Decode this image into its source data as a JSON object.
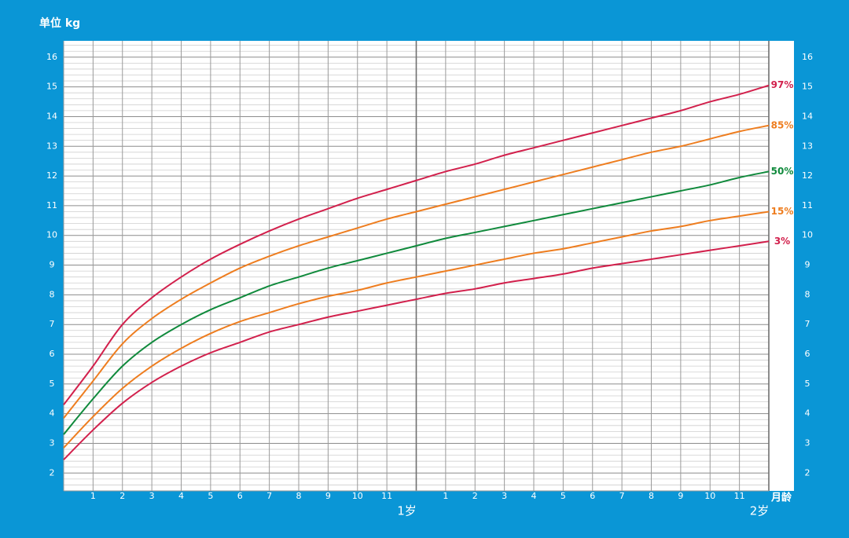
{
  "chart_data": {
    "type": "line",
    "y_label": "单位 kg",
    "x_label": "月龄",
    "x": [
      0,
      1,
      2,
      3,
      4,
      5,
      6,
      7,
      8,
      9,
      10,
      11,
      12,
      13,
      14,
      15,
      16,
      17,
      18,
      19,
      20,
      21,
      22,
      23,
      24
    ],
    "xlim": [
      0,
      24
    ],
    "xticks": [
      1,
      2,
      3,
      4,
      5,
      6,
      7,
      8,
      9,
      10,
      11,
      {
        "value": 13,
        "label": "1"
      },
      {
        "value": 14,
        "label": "2"
      },
      {
        "value": 15,
        "label": "3"
      },
      {
        "value": 16,
        "label": "4"
      },
      {
        "value": 17,
        "label": "5"
      },
      {
        "value": 18,
        "label": "6"
      },
      {
        "value": 19,
        "label": "7"
      },
      {
        "value": 20,
        "label": "8"
      },
      {
        "value": 21,
        "label": "9"
      },
      {
        "value": 22,
        "label": "10"
      },
      {
        "value": 23,
        "label": "11"
      }
    ],
    "year_ticks": [
      {
        "value": 12,
        "label": "1岁"
      },
      {
        "value": 24,
        "label": "2岁"
      }
    ],
    "ylim": [
      1.4,
      16.55
    ],
    "yticks": [
      2,
      3,
      4,
      5,
      6,
      7,
      8,
      9,
      10,
      11,
      12,
      13,
      14,
      15,
      16
    ],
    "grid": true,
    "series": [
      {
        "name": "97%",
        "color": "#d2204c",
        "values": [
          4.3,
          5.6,
          7.0,
          7.9,
          8.6,
          9.2,
          9.7,
          10.15,
          10.55,
          10.9,
          11.25,
          11.55,
          11.85,
          12.15,
          12.4,
          12.7,
          12.95,
          13.2,
          13.45,
          13.7,
          13.95,
          14.2,
          14.5,
          14.75,
          15.05
        ]
      },
      {
        "name": "85%",
        "color": "#ee7d1f",
        "values": [
          3.85,
          5.1,
          6.35,
          7.2,
          7.85,
          8.4,
          8.9,
          9.3,
          9.65,
          9.95,
          10.25,
          10.55,
          10.8,
          11.05,
          11.3,
          11.55,
          11.8,
          12.05,
          12.3,
          12.55,
          12.8,
          13.0,
          13.25,
          13.5,
          13.7
        ]
      },
      {
        "name": "50%",
        "color": "#108a3c",
        "values": [
          3.3,
          4.5,
          5.6,
          6.4,
          7.0,
          7.5,
          7.9,
          8.3,
          8.6,
          8.9,
          9.15,
          9.4,
          9.65,
          9.9,
          10.1,
          10.3,
          10.5,
          10.7,
          10.9,
          11.1,
          11.3,
          11.5,
          11.7,
          11.95,
          12.15
        ]
      },
      {
        "name": "15%",
        "color": "#ee7d1f",
        "values": [
          2.85,
          3.9,
          4.85,
          5.6,
          6.2,
          6.7,
          7.1,
          7.4,
          7.7,
          7.95,
          8.15,
          8.4,
          8.6,
          8.8,
          9.0,
          9.2,
          9.4,
          9.55,
          9.75,
          9.95,
          10.15,
          10.3,
          10.5,
          10.65,
          10.8
        ]
      },
      {
        "name": "3%",
        "color": "#d2204c",
        "values": [
          2.45,
          3.45,
          4.35,
          5.05,
          5.6,
          6.05,
          6.4,
          6.75,
          7.0,
          7.25,
          7.45,
          7.65,
          7.85,
          8.05,
          8.2,
          8.4,
          8.55,
          8.7,
          8.9,
          9.05,
          9.2,
          9.35,
          9.5,
          9.65,
          9.8
        ]
      }
    ]
  }
}
